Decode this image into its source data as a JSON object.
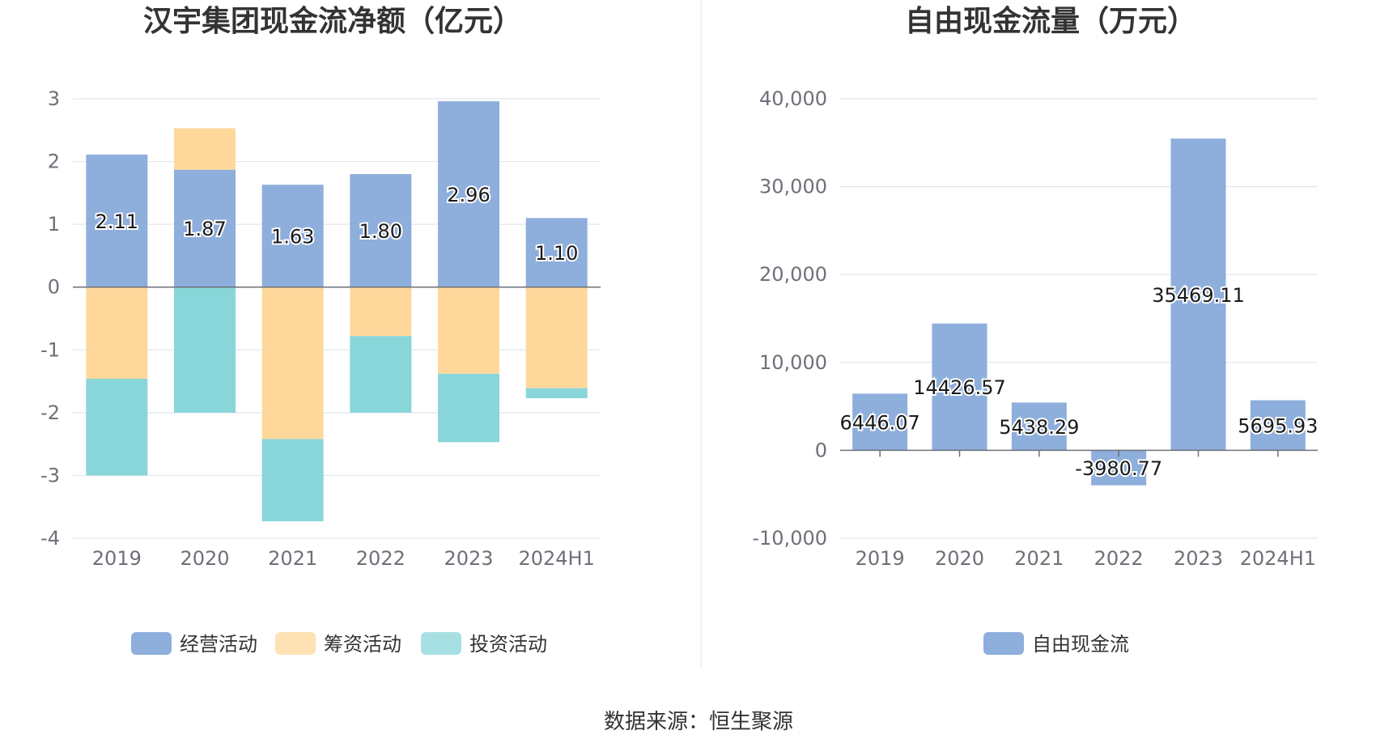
{
  "chart_data": [
    {
      "type": "bar",
      "stacked": true,
      "title": "汉宇集团现金流净额（亿元）",
      "categories": [
        "2019",
        "2020",
        "2021",
        "2022",
        "2023",
        "2024H1"
      ],
      "ylim": [
        -4,
        3
      ],
      "yticks": [
        "3",
        "2",
        "1",
        "0",
        "-1",
        "-2",
        "-3",
        "-4"
      ],
      "grid": true,
      "legend_position": "bottom",
      "series": [
        {
          "name": "经营活动",
          "color": "#8eaedc",
          "values": [
            2.11,
            1.87,
            1.63,
            1.8,
            2.96,
            1.1
          ],
          "labels": [
            "2.11",
            "1.87",
            "1.63",
            "1.80",
            "2.96",
            "1.10"
          ]
        },
        {
          "name": "筹资活动",
          "color": "#fed89b",
          "values": [
            -1.46,
            0.66,
            -2.42,
            -0.78,
            -1.38,
            -1.61
          ]
        },
        {
          "name": "投资活动",
          "color": "#88d6d9",
          "values": [
            -1.54,
            -2.0,
            -1.31,
            -1.22,
            -1.09,
            -0.16
          ]
        }
      ]
    },
    {
      "type": "bar",
      "title": "自由现金流量（万元）",
      "categories": [
        "2019",
        "2020",
        "2021",
        "2022",
        "2023",
        "2024H1"
      ],
      "ylim": [
        -10000,
        40000
      ],
      "yticks": [
        "40,000",
        "30,000",
        "20,000",
        "10,000",
        "0",
        "-10,000"
      ],
      "grid": true,
      "legend_position": "bottom",
      "series": [
        {
          "name": "自由现金流",
          "color": "#8eaedc",
          "values": [
            6446.07,
            14426.57,
            5438.29,
            -3980.77,
            35469.11,
            5695.93
          ],
          "labels": [
            "6446.07",
            "14426.57",
            "5438.29",
            "-3980.77",
            "35469.11",
            "5695.93"
          ]
        }
      ]
    }
  ],
  "footer": {
    "source": "数据来源：恒生聚源"
  },
  "colors": {
    "grid": "#e0e6f1",
    "axis": "#6e7079",
    "divider": "#eeeeee"
  }
}
